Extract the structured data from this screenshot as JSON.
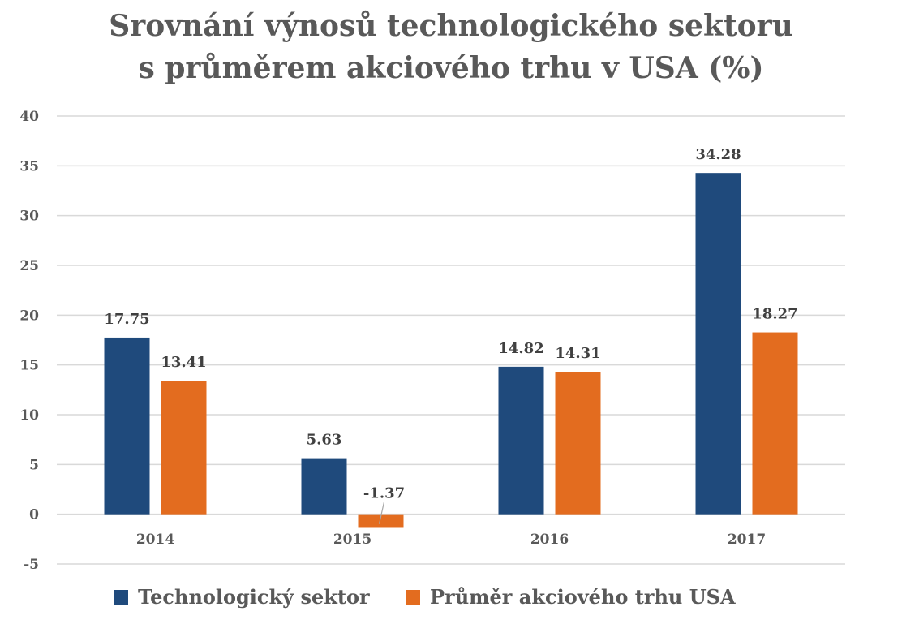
{
  "chart_data": {
    "type": "bar",
    "title_lines": [
      "Srovnání výnosů technologického sektoru",
      "s průměrem akciového trhu v USA (%)"
    ],
    "categories": [
      "2014",
      "2015",
      "2016",
      "2017"
    ],
    "series": [
      {
        "name": "Technologický sektor",
        "color": "#1F4A7C",
        "values": [
          17.75,
          5.63,
          14.82,
          34.28
        ]
      },
      {
        "name": "Průměr akciového trhu USA",
        "color": "#E36C1F",
        "values": [
          13.41,
          -1.37,
          14.31,
          18.27
        ]
      }
    ],
    "data_labels": [
      [
        "17.75",
        "5.63",
        "14.82",
        "34.28"
      ],
      [
        "13.41",
        "-1.37",
        "14.31",
        "18.27"
      ]
    ],
    "y_ticks": [
      40,
      35,
      30,
      25,
      20,
      15,
      10,
      5,
      0,
      -5
    ],
    "ylim": [
      -5,
      40
    ],
    "xlabel": "",
    "ylabel": "",
    "grid": true,
    "grid_color": "#D9D9D9",
    "legend_position": "bottom"
  }
}
